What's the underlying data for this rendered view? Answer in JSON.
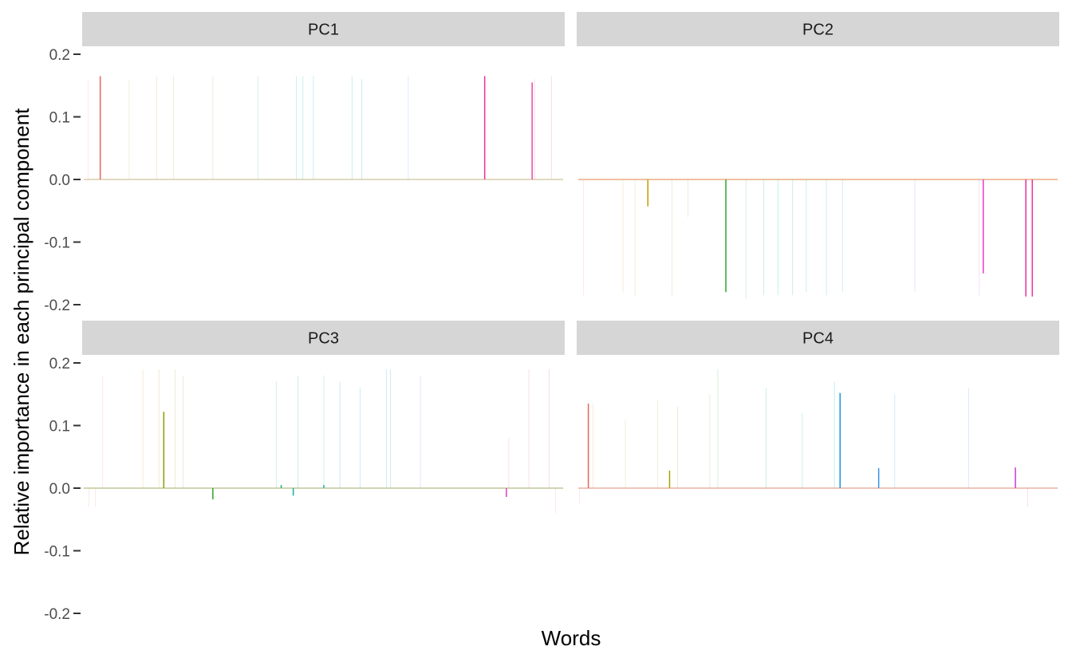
{
  "chart_data": {
    "type": "bar",
    "ylabel": "Relative importance in each principal component",
    "xlabel": "Words",
    "ylim": [
      -0.2,
      0.2
    ],
    "yticks": [
      "0.2",
      "0.1",
      "0.0",
      "-0.1",
      "-0.2"
    ],
    "ytick_values": [
      0.2,
      0.1,
      0.0,
      -0.1,
      -0.2
    ],
    "grid": false,
    "legend": "none",
    "n_words": 600,
    "facets": [
      {
        "label": "PC1",
        "baseline_color": "#d4c7a3",
        "bars": [
          {
            "x": 22,
            "y": 0.165,
            "color": "#e8655a"
          },
          {
            "x": 500,
            "y": 0.165,
            "color": "#e8319e"
          },
          {
            "x": 559,
            "y": 0.155,
            "color": "#e9489f"
          }
        ],
        "faint": [
          {
            "x": 7,
            "y": 0.16,
            "color": "#f5a69e"
          },
          {
            "x": 58,
            "y": 0.16,
            "color": "#d6b16b"
          },
          {
            "x": 92,
            "y": 0.165,
            "color": "#c9b25a"
          },
          {
            "x": 113,
            "y": 0.165,
            "color": "#b8b35a"
          },
          {
            "x": 162,
            "y": 0.165,
            "color": "#a8b87a"
          },
          {
            "x": 218,
            "y": 0.165,
            "color": "#4fbf8a"
          },
          {
            "x": 266,
            "y": 0.165,
            "color": "#27bfa6"
          },
          {
            "x": 274,
            "y": 0.165,
            "color": "#22c0b8"
          },
          {
            "x": 287,
            "y": 0.165,
            "color": "#1fb9c9"
          },
          {
            "x": 335,
            "y": 0.165,
            "color": "#29b4da"
          },
          {
            "x": 347,
            "y": 0.16,
            "color": "#3aace3"
          },
          {
            "x": 405,
            "y": 0.165,
            "color": "#7f9fed"
          },
          {
            "x": 562,
            "y": 0.16,
            "color": "#f26ab6"
          },
          {
            "x": 583,
            "y": 0.165,
            "color": "#f3729b"
          }
        ]
      },
      {
        "label": "PC2",
        "baseline_color": "#e8a37a",
        "bars": [
          {
            "x": 88,
            "y": -0.043,
            "color": "#c49a00"
          },
          {
            "x": 185,
            "y": -0.18,
            "color": "#2aa52a"
          },
          {
            "x": 505,
            "y": -0.15,
            "color": "#e53cc0"
          },
          {
            "x": 558,
            "y": -0.187,
            "color": "#e8319e"
          },
          {
            "x": 566,
            "y": -0.187,
            "color": "#e8319e"
          }
        ],
        "faint": [
          {
            "x": 8,
            "y": -0.185,
            "color": "#f5a69e"
          },
          {
            "x": 57,
            "y": -0.18,
            "color": "#e0b05a"
          },
          {
            "x": 72,
            "y": -0.185,
            "color": "#d4b34f"
          },
          {
            "x": 118,
            "y": -0.185,
            "color": "#b8b35a"
          },
          {
            "x": 138,
            "y": -0.06,
            "color": "#a6b36a"
          },
          {
            "x": 210,
            "y": -0.19,
            "color": "#58bf6f"
          },
          {
            "x": 232,
            "y": -0.185,
            "color": "#39bf8a"
          },
          {
            "x": 250,
            "y": -0.185,
            "color": "#27bfa6"
          },
          {
            "x": 268,
            "y": -0.185,
            "color": "#22c0b8"
          },
          {
            "x": 285,
            "y": -0.18,
            "color": "#1fb9c9"
          },
          {
            "x": 310,
            "y": -0.185,
            "color": "#29b4da"
          },
          {
            "x": 330,
            "y": -0.18,
            "color": "#3aace3"
          },
          {
            "x": 420,
            "y": -0.18,
            "color": "#7f9fed"
          },
          {
            "x": 500,
            "y": -0.185,
            "color": "#d37ff0"
          }
        ]
      },
      {
        "label": "PC3",
        "baseline_color": "#b9c48a",
        "bars": [
          {
            "x": 101,
            "y": 0.122,
            "color": "#8e9a00"
          },
          {
            "x": 162,
            "y": -0.018,
            "color": "#2aa52a"
          },
          {
            "x": 247,
            "y": 0.005,
            "color": "#1fae84"
          },
          {
            "x": 262,
            "y": -0.012,
            "color": "#14b29a"
          },
          {
            "x": 300,
            "y": 0.005,
            "color": "#13b1b3"
          },
          {
            "x": 527,
            "y": -0.014,
            "color": "#e53cc0"
          }
        ],
        "faint": [
          {
            "x": 8,
            "y": -0.03,
            "color": "#f5a69e"
          },
          {
            "x": 16,
            "y": -0.03,
            "color": "#f5a69e"
          },
          {
            "x": 25,
            "y": 0.18,
            "color": "#f0a48e"
          },
          {
            "x": 75,
            "y": 0.19,
            "color": "#d6b16b"
          },
          {
            "x": 95,
            "y": 0.19,
            "color": "#c9b25a"
          },
          {
            "x": 115,
            "y": 0.19,
            "color": "#b8b35a"
          },
          {
            "x": 125,
            "y": 0.18,
            "color": "#a8b87a"
          },
          {
            "x": 241,
            "y": 0.17,
            "color": "#4fbf8a"
          },
          {
            "x": 268,
            "y": 0.18,
            "color": "#27bfa6"
          },
          {
            "x": 300,
            "y": 0.18,
            "color": "#22c0b8"
          },
          {
            "x": 320,
            "y": 0.17,
            "color": "#1fb9c9"
          },
          {
            "x": 345,
            "y": 0.16,
            "color": "#29b4da"
          },
          {
            "x": 378,
            "y": 0.19,
            "color": "#3aace3"
          },
          {
            "x": 383,
            "y": 0.19,
            "color": "#3aace3"
          },
          {
            "x": 420,
            "y": 0.18,
            "color": "#7f9fed"
          },
          {
            "x": 530,
            "y": 0.08,
            "color": "#f26ab6"
          },
          {
            "x": 555,
            "y": 0.19,
            "color": "#f3729b"
          },
          {
            "x": 580,
            "y": 0.19,
            "color": "#f3729b"
          },
          {
            "x": 588,
            "y": -0.04,
            "color": "#f5a69e"
          }
        ]
      },
      {
        "label": "PC4",
        "baseline_color": "#e7a99a",
        "bars": [
          {
            "x": 14,
            "y": 0.135,
            "color": "#e8655a"
          },
          {
            "x": 115,
            "y": 0.028,
            "color": "#a6a000"
          },
          {
            "x": 327,
            "y": 0.152,
            "color": "#1b96d6"
          },
          {
            "x": 375,
            "y": 0.032,
            "color": "#3a8ee6"
          },
          {
            "x": 545,
            "y": 0.033,
            "color": "#c23bd0"
          }
        ],
        "faint": [
          {
            "x": 3,
            "y": -0.025,
            "color": "#f5a69e"
          },
          {
            "x": 20,
            "y": 0.135,
            "color": "#f0a48e"
          },
          {
            "x": 60,
            "y": 0.11,
            "color": "#d6b16b"
          },
          {
            "x": 100,
            "y": 0.14,
            "color": "#c9b25a"
          },
          {
            "x": 125,
            "y": 0.13,
            "color": "#b8b35a"
          },
          {
            "x": 165,
            "y": 0.15,
            "color": "#a8b87a"
          },
          {
            "x": 175,
            "y": 0.19,
            "color": "#58bf6f"
          },
          {
            "x": 235,
            "y": 0.16,
            "color": "#39bf8a"
          },
          {
            "x": 280,
            "y": 0.12,
            "color": "#27bfa6"
          },
          {
            "x": 320,
            "y": 0.17,
            "color": "#1fb9c9"
          },
          {
            "x": 395,
            "y": 0.15,
            "color": "#3aace3"
          },
          {
            "x": 487,
            "y": 0.16,
            "color": "#7f9fed"
          },
          {
            "x": 560,
            "y": -0.03,
            "color": "#f26ab6"
          }
        ]
      }
    ]
  }
}
